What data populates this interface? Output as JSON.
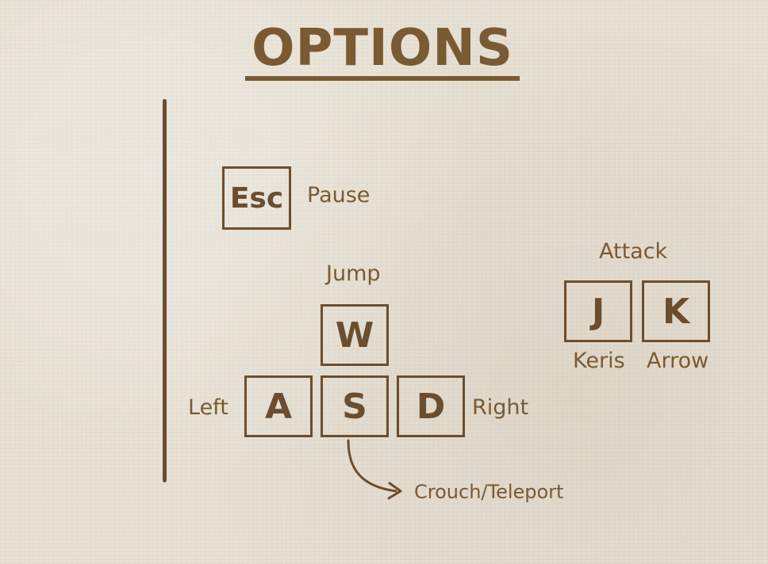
{
  "title": "OPTIONS",
  "colors": {
    "ink": "#6b4e2f",
    "title": "#7a5a33",
    "paper": "#e7e1d5"
  },
  "controls": {
    "pause": {
      "key": "Esc",
      "action": "Pause"
    },
    "jump": {
      "key": "W",
      "action": "Jump"
    },
    "left": {
      "key": "A",
      "action": "Left"
    },
    "crouch": {
      "key": "S",
      "action": "Crouch/Teleport"
    },
    "right": {
      "key": "D",
      "action": "Right"
    },
    "attack": {
      "heading": "Attack",
      "keris": {
        "key": "J",
        "action": "Keris"
      },
      "arrow": {
        "key": "K",
        "action": "Arrow"
      }
    }
  }
}
